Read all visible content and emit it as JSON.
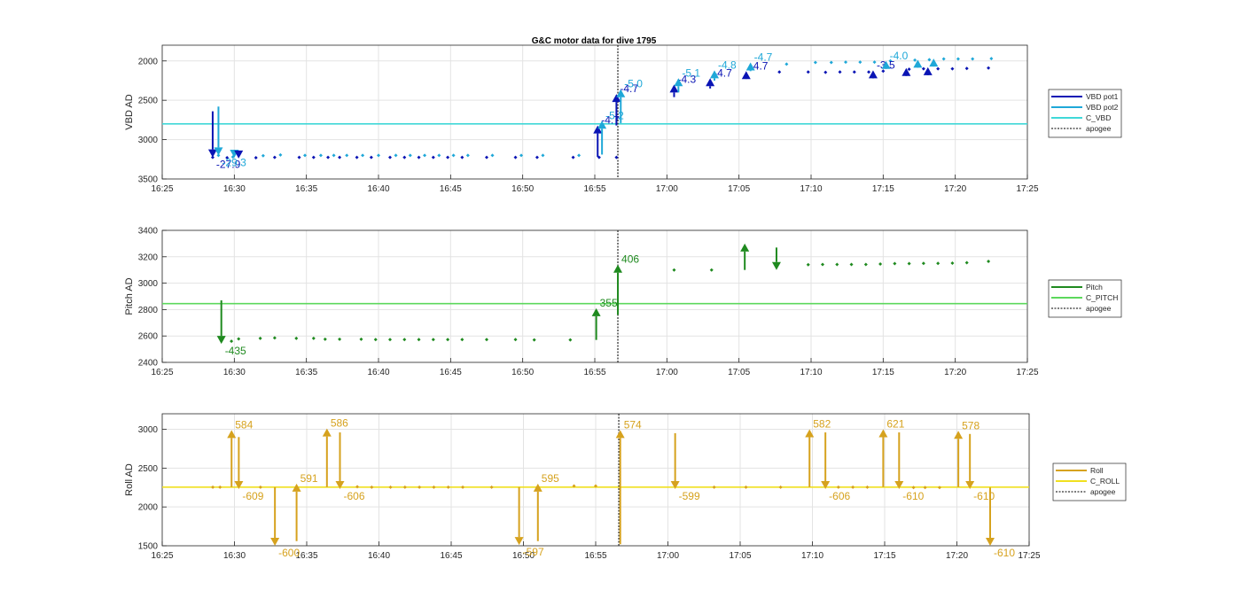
{
  "title": "G&C motor data for dive 1795",
  "colors": {
    "vbd_pot1": "#0a14b4",
    "vbd_pot2": "#1fa8d8",
    "c_vbd": "#40d8d8",
    "pitch": "#1f8a1f",
    "c_pitch": "#5cd85c",
    "roll": "#d6a21e",
    "c_roll": "#f0e020",
    "apogee": "#333333",
    "grid": "#e3e3e3",
    "axis": "#262626"
  },
  "chart_data": [
    {
      "type": "line",
      "id": "vbd",
      "ylabel": "VBD AD",
      "xlim": [
        "16:25",
        "17:25"
      ],
      "ylim": [
        1800,
        3500
      ],
      "y_reversed": true,
      "yticks": [
        2000,
        2500,
        3000,
        3500
      ],
      "xticks": [
        "16:25",
        "16:30",
        "16:35",
        "16:40",
        "16:45",
        "16:50",
        "16:55",
        "17:00",
        "17:05",
        "17:10",
        "17:15",
        "17:20",
        "17:25"
      ],
      "grid": true,
      "legend": [
        "VBD pot1",
        "VBD pot2",
        "C_VBD",
        "apogee"
      ],
      "reference_line": {
        "name": "C_VBD",
        "y": 2800
      },
      "apogee_x": "16:56.6",
      "series": [
        {
          "name": "VBD pot1",
          "color_key": "vbd_pot1",
          "points": [
            [
              "16:28.5",
              3225
            ],
            [
              "16:29.5",
              3230
            ],
            [
              "16:31.5",
              3230
            ],
            [
              "16:32.8",
              3225
            ],
            [
              "16:34.5",
              3225
            ],
            [
              "16:35.5",
              3225
            ],
            [
              "16:36.5",
              3225
            ],
            [
              "16:37.3",
              3225
            ],
            [
              "16:38.5",
              3225
            ],
            [
              "16:39.5",
              3225
            ],
            [
              "16:40.8",
              3225
            ],
            [
              "16:41.8",
              3225
            ],
            [
              "16:42.8",
              3225
            ],
            [
              "16:43.8",
              3225
            ],
            [
              "16:44.8",
              3225
            ],
            [
              "16:45.8",
              3225
            ],
            [
              "16:47.5",
              3225
            ],
            [
              "16:49.5",
              3225
            ],
            [
              "16:51.0",
              3225
            ],
            [
              "16:53.5",
              3225
            ],
            [
              "16:55.3",
              3225
            ],
            [
              "16:56.5",
              3225
            ],
            [
              "17:07.8",
              2140
            ],
            [
              "17:09.8",
              2140
            ],
            [
              "17:11.0",
              2145
            ],
            [
              "17:12.0",
              2140
            ],
            [
              "17:13.0",
              2140
            ],
            [
              "17:14.0",
              2140
            ],
            [
              "17:15.0",
              2130
            ],
            [
              "17:16.8",
              2105
            ],
            [
              "17:17.8",
              2100
            ],
            [
              "17:18.8",
              2100
            ],
            [
              "17:19.8",
              2100
            ],
            [
              "17:20.8",
              2095
            ],
            [
              "17:22.3",
              2090
            ]
          ]
        },
        {
          "name": "VBD pot2",
          "color_key": "vbd_pot2",
          "points": [
            [
              "16:28.9",
              3200
            ],
            [
              "16:29.9",
              3220
            ],
            [
              "16:32.0",
              3205
            ],
            [
              "16:33.2",
              3195
            ],
            [
              "16:34.9",
              3200
            ],
            [
              "16:36.0",
              3200
            ],
            [
              "16:36.9",
              3200
            ],
            [
              "16:37.8",
              3200
            ],
            [
              "16:38.9",
              3200
            ],
            [
              "16:40.0",
              3200
            ],
            [
              "16:41.2",
              3200
            ],
            [
              "16:42.2",
              3200
            ],
            [
              "16:43.2",
              3200
            ],
            [
              "16:44.2",
              3200
            ],
            [
              "16:45.2",
              3200
            ],
            [
              "16:46.2",
              3200
            ],
            [
              "16:47.9",
              3200
            ],
            [
              "16:49.9",
              3200
            ],
            [
              "16:51.4",
              3200
            ],
            [
              "16:53.9",
              3200
            ],
            [
              "17:08.3",
              2040
            ],
            [
              "17:10.3",
              2020
            ],
            [
              "17:11.4",
              2020
            ],
            [
              "17:12.4",
              2015
            ],
            [
              "17:13.4",
              2015
            ],
            [
              "17:14.4",
              2015
            ],
            [
              "17:15.5",
              2000
            ],
            [
              "17:17.2",
              1990
            ],
            [
              "17:18.2",
              1985
            ],
            [
              "17:19.2",
              1975
            ],
            [
              "17:20.2",
              1975
            ],
            [
              "17:21.2",
              1975
            ],
            [
              "17:22.5",
              1970
            ]
          ]
        }
      ],
      "moves": [
        {
          "series": "VBD pot1",
          "x": "16:28.5",
          "from": 2640,
          "to": 3225,
          "label": "-27.9"
        },
        {
          "series": "VBD pot2",
          "x": "16:28.9",
          "from": 2580,
          "to": 3200,
          "label": "-29.3"
        },
        {
          "series": "VBD pot2",
          "x": "16:30.0",
          "from": 3175,
          "to": 3230,
          "label": ""
        },
        {
          "series": "VBD pot1",
          "x": "16:30.3",
          "from": 3180,
          "to": 3240,
          "label": ""
        },
        {
          "series": "VBD pot1",
          "x": "16:55.2",
          "from": 3220,
          "to": 2820,
          "label": "-4.7"
        },
        {
          "series": "VBD pot2",
          "x": "16:55.5",
          "from": 3190,
          "to": 2760,
          "label": "-5.2"
        },
        {
          "series": "VBD pot1",
          "x": "16:56.5",
          "from": 2820,
          "to": 2420,
          "label": "-4.7"
        },
        {
          "series": "VBD pot2",
          "x": "16:56.8",
          "from": 2790,
          "to": 2360,
          "label": "-5.0"
        },
        {
          "series": "VBD pot1",
          "x": "17:00.5",
          "from": 2460,
          "to": 2300,
          "label": "-4.3"
        },
        {
          "series": "VBD pot2",
          "x": "17:00.8",
          "from": 2400,
          "to": 2220,
          "label": "-5.1"
        },
        {
          "series": "VBD pot1",
          "x": "17:03.0",
          "from": 2350,
          "to": 2220,
          "label": "-4.7"
        },
        {
          "series": "VBD pot2",
          "x": "17:03.3",
          "from": 2250,
          "to": 2120,
          "label": "-4.8"
        },
        {
          "series": "VBD pot1",
          "x": "17:05.5",
          "from": 2230,
          "to": 2130,
          "label": "-4.7"
        },
        {
          "series": "VBD pot2",
          "x": "17:05.8",
          "from": 2130,
          "to": 2020,
          "label": "-4.7"
        },
        {
          "series": "VBD pot1",
          "x": "17:14.3",
          "from": 2145,
          "to": 2120,
          "label": "-3.5"
        },
        {
          "series": "VBD pot2",
          "x": "17:15.2",
          "from": 2025,
          "to": 2000,
          "label": "-4.0"
        },
        {
          "series": "VBD pot1",
          "x": "17:16.6",
          "from": 2120,
          "to": 2090,
          "label": ""
        },
        {
          "series": "VBD pot2",
          "x": "17:17.4",
          "from": 2010,
          "to": 1985,
          "label": ""
        },
        {
          "series": "VBD pot1",
          "x": "17:18.1",
          "from": 2110,
          "to": 2080,
          "label": ""
        },
        {
          "series": "VBD pot2",
          "x": "17:18.5",
          "from": 1995,
          "to": 1970,
          "label": ""
        }
      ]
    },
    {
      "type": "line",
      "id": "pitch",
      "ylabel": "Pitch AD",
      "xlim": [
        "16:25",
        "17:25"
      ],
      "ylim": [
        2400,
        3400
      ],
      "y_reversed": false,
      "yticks": [
        2400,
        2600,
        2800,
        3000,
        3200,
        3400
      ],
      "xticks": [
        "16:25",
        "16:30",
        "16:35",
        "16:40",
        "16:45",
        "16:50",
        "16:55",
        "17:00",
        "17:05",
        "17:10",
        "17:15",
        "17:20",
        "17:25"
      ],
      "grid": true,
      "legend": [
        "Pitch",
        "C_PITCH",
        "apogee"
      ],
      "reference_line": {
        "name": "C_PITCH",
        "y": 2845
      },
      "apogee_x": "16:56.6",
      "series": [
        {
          "name": "Pitch",
          "color_key": "pitch",
          "points": [
            [
              "16:29.8",
              2560
            ],
            [
              "16:30.3",
              2578
            ],
            [
              "16:31.8",
              2582
            ],
            [
              "16:32.8",
              2585
            ],
            [
              "16:34.3",
              2582
            ],
            [
              "16:35.5",
              2582
            ],
            [
              "16:36.3",
              2575
            ],
            [
              "16:37.3",
              2575
            ],
            [
              "16:38.8",
              2575
            ],
            [
              "16:39.8",
              2573
            ],
            [
              "16:40.8",
              2573
            ],
            [
              "16:41.8",
              2573
            ],
            [
              "16:42.8",
              2573
            ],
            [
              "16:43.8",
              2573
            ],
            [
              "16:44.8",
              2573
            ],
            [
              "16:45.8",
              2573
            ],
            [
              "16:47.5",
              2573
            ],
            [
              "16:49.5",
              2573
            ],
            [
              "16:50.8",
              2570
            ],
            [
              "16:53.3",
              2570
            ],
            [
              "17:00.5",
              3100
            ],
            [
              "17:03.1",
              3100
            ],
            [
              "17:09.8",
              3140
            ],
            [
              "17:10.8",
              3142
            ],
            [
              "17:11.8",
              3142
            ],
            [
              "17:12.8",
              3142
            ],
            [
              "17:13.8",
              3142
            ],
            [
              "17:14.8",
              3145
            ],
            [
              "17:15.8",
              3148
            ],
            [
              "17:16.8",
              3148
            ],
            [
              "17:17.8",
              3150
            ],
            [
              "17:18.8",
              3150
            ],
            [
              "17:19.8",
              3152
            ],
            [
              "17:20.8",
              3155
            ],
            [
              "17:22.3",
              3165
            ]
          ]
        }
      ],
      "moves": [
        {
          "series": "Pitch",
          "x": "16:29.1",
          "from": 2870,
          "to": 2540,
          "label": "-435"
        },
        {
          "series": "Pitch",
          "x": "16:55.1",
          "from": 2570,
          "to": 2810,
          "label": "355"
        },
        {
          "series": "Pitch",
          "x": "16:56.6",
          "from": 2760,
          "to": 3140,
          "label": "406"
        },
        {
          "series": "Pitch",
          "x": "17:05.4",
          "from": 3100,
          "to": 3300,
          "label": ""
        },
        {
          "series": "Pitch",
          "x": "17:07.6",
          "from": 3270,
          "to": 3100,
          "label": ""
        }
      ]
    },
    {
      "type": "line",
      "id": "roll",
      "ylabel": "Roll AD",
      "xlim": [
        "16:25",
        "17:25"
      ],
      "ylim": [
        1500,
        3200
      ],
      "y_reversed": false,
      "yticks": [
        1500,
        2000,
        2500,
        3000
      ],
      "xticks": [
        "16:25",
        "16:30",
        "16:35",
        "16:40",
        "16:45",
        "16:50",
        "16:55",
        "17:00",
        "17:05",
        "17:10",
        "17:15",
        "17:20",
        "17:25"
      ],
      "grid": true,
      "legend": [
        "Roll",
        "C_ROLL",
        "apogee"
      ],
      "reference_line": {
        "name": "C_ROLL",
        "y": 2255
      },
      "apogee_x": "16:56.6",
      "series": [
        {
          "name": "Roll",
          "color_key": "roll",
          "points": [
            [
              "16:28.5",
              2255
            ],
            [
              "16:29.0",
              2255
            ],
            [
              "16:31.8",
              2255
            ],
            [
              "16:38.5",
              2260
            ],
            [
              "16:39.5",
              2255
            ],
            [
              "16:40.8",
              2255
            ],
            [
              "16:41.8",
              2255
            ],
            [
              "16:42.8",
              2255
            ],
            [
              "16:43.8",
              2255
            ],
            [
              "16:44.8",
              2255
            ],
            [
              "16:45.8",
              2255
            ],
            [
              "16:47.8",
              2255
            ],
            [
              "16:53.5",
              2270
            ],
            [
              "16:55.0",
              2270
            ],
            [
              "17:03.2",
              2255
            ],
            [
              "17:05.4",
              2255
            ],
            [
              "17:07.8",
              2255
            ],
            [
              "17:11.8",
              2255
            ],
            [
              "17:12.8",
              2255
            ],
            [
              "17:13.8",
              2255
            ],
            [
              "17:17.0",
              2250
            ],
            [
              "17:17.8",
              2250
            ],
            [
              "17:18.8",
              2250
            ]
          ]
        }
      ],
      "moves": [
        {
          "series": "Roll",
          "x": "16:29.8",
          "from": 2255,
          "to": 2990,
          "label": "584"
        },
        {
          "series": "Roll",
          "x": "16:30.3",
          "from": 2900,
          "to": 2230,
          "label": "-609"
        },
        {
          "series": "Roll",
          "x": "16:32.8",
          "from": 2255,
          "to": 1500,
          "label": "-600"
        },
        {
          "series": "Roll",
          "x": "16:34.3",
          "from": 1560,
          "to": 2300,
          "label": "591"
        },
        {
          "series": "Roll",
          "x": "16:36.4",
          "from": 2255,
          "to": 3010,
          "label": "586"
        },
        {
          "series": "Roll",
          "x": "16:37.3",
          "from": 2960,
          "to": 2230,
          "label": "-606"
        },
        {
          "series": "Roll",
          "x": "16:49.7",
          "from": 2255,
          "to": 1510,
          "label": "-597"
        },
        {
          "series": "Roll",
          "x": "16:51.0",
          "from": 1560,
          "to": 2300,
          "label": "595"
        },
        {
          "series": "Roll",
          "x": "16:56.7",
          "from": 1520,
          "to": 2990,
          "label": "574"
        },
        {
          "series": "Roll",
          "x": "17:00.5",
          "from": 2950,
          "to": 2230,
          "label": "-599"
        },
        {
          "series": "Roll",
          "x": "17:09.8",
          "from": 2255,
          "to": 3000,
          "label": "582"
        },
        {
          "series": "Roll",
          "x": "17:10.9",
          "from": 2960,
          "to": 2230,
          "label": "-606"
        },
        {
          "series": "Roll",
          "x": "17:14.9",
          "from": 2255,
          "to": 3000,
          "label": "621"
        },
        {
          "series": "Roll",
          "x": "17:16.0",
          "from": 2960,
          "to": 2230,
          "label": "-610"
        },
        {
          "series": "Roll",
          "x": "17:20.1",
          "from": 2255,
          "to": 2980,
          "label": "578"
        },
        {
          "series": "Roll",
          "x": "17:20.9",
          "from": 2940,
          "to": 2230,
          "label": "-610"
        },
        {
          "series": "Roll",
          "x": "17:22.3",
          "from": 2250,
          "to": 1500,
          "label": "-610"
        }
      ]
    }
  ]
}
